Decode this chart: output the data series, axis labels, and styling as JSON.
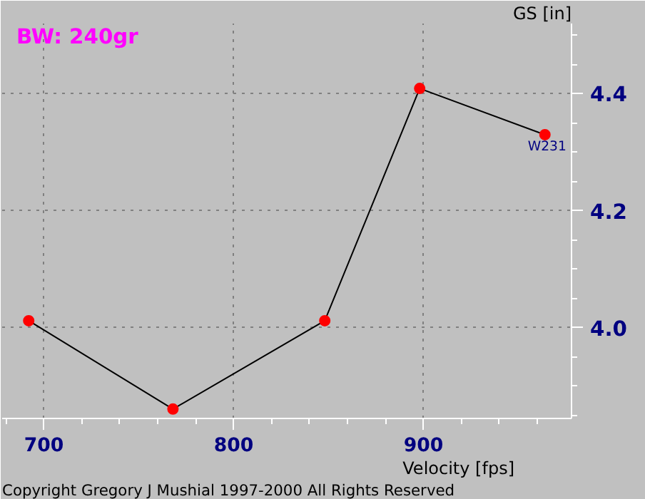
{
  "chart_data": {
    "type": "line",
    "title": "BW: 240gr",
    "xlabel": "Velocity [fps]",
    "ylabel": "GS [in]",
    "x": [
      692,
      768,
      848,
      898,
      964
    ],
    "series": [
      {
        "color": "#000000",
        "values": [
          4.012,
          3.861,
          4.012,
          4.409,
          4.33
        ]
      }
    ],
    "xlim": [
      678,
      978
    ],
    "ylim": [
      3.845,
      4.52
    ],
    "xticks": [
      700,
      800,
      900
    ],
    "yticks": [
      {
        "value": 4.0,
        "label": "4.0"
      },
      {
        "value": 4.2,
        "label": "4.2"
      },
      {
        "value": 4.4,
        "label": "4.4"
      }
    ],
    "grid": true,
    "marker": "circle",
    "line_style": "solid",
    "annotations": [
      {
        "text": "W231",
        "x": 964,
        "y": 4.33
      },
      "Copyright Gregory J Mushial 1997-2000    All Rights Reserved"
    ]
  }
}
